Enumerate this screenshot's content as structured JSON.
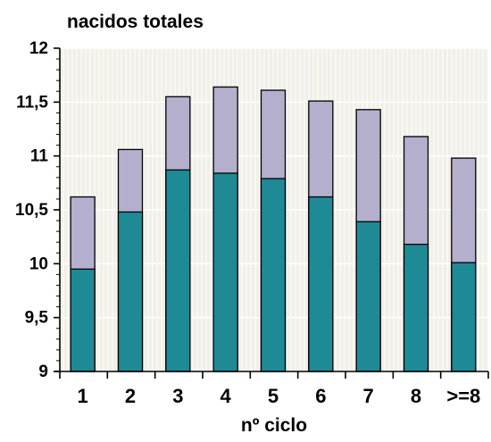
{
  "chart_data": {
    "type": "bar",
    "title": "nacidos totales",
    "xlabel": "nº ciclo",
    "ylabel": "",
    "ylim": [
      9,
      12
    ],
    "yticks": [
      "9",
      "9,5",
      "10",
      "10,5",
      "11",
      "11,5",
      "12"
    ],
    "ytick_values": [
      9,
      9.5,
      10,
      10.5,
      11,
      11.5,
      12
    ],
    "categories": [
      "1",
      "2",
      "3",
      "4",
      "5",
      "6",
      "7",
      "8",
      ">=8"
    ],
    "series": [
      {
        "values": [
          9.95,
          10.48,
          10.87,
          10.84,
          10.79,
          10.62,
          10.39,
          10.18,
          10.01
        ],
        "color": "#1e8a96"
      },
      {
        "values": [
          10.62,
          11.06,
          11.55,
          11.64,
          11.61,
          11.51,
          11.43,
          11.18,
          10.98
        ],
        "color": "#b3afcc"
      }
    ],
    "grid": true,
    "legend": "none"
  },
  "colors": {
    "plot_background": "#f1efe8",
    "grid_line": "#fcfcfb",
    "bar_lower": "#1e8a96",
    "bar_upper": "#b3afcc",
    "bar_outline": "#000000"
  }
}
